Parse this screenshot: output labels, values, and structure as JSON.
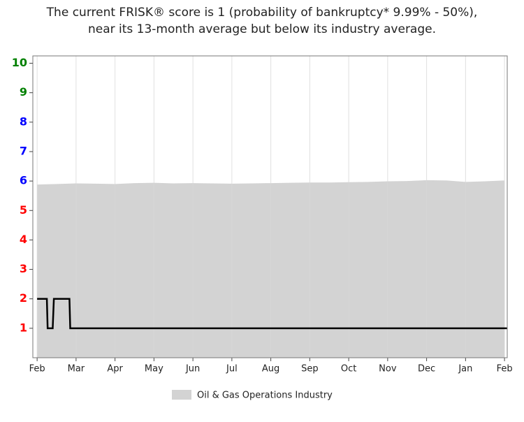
{
  "chart_data": {
    "type": "line",
    "title_lines": [
      "The current FRISK® score is 1 (probability of bankruptcy* 9.99% - 50%),",
      "near its 13-month average but below its industry average."
    ],
    "xlim": [
      -0.11,
      12.07
    ],
    "xticks": [
      {
        "value": 0,
        "label": "Feb"
      },
      {
        "value": 1,
        "label": "Mar"
      },
      {
        "value": 2,
        "label": "Apr"
      },
      {
        "value": 3,
        "label": "May"
      },
      {
        "value": 4,
        "label": "Jun"
      },
      {
        "value": 5,
        "label": "Jul"
      },
      {
        "value": 6,
        "label": "Aug"
      },
      {
        "value": 7,
        "label": "Sep"
      },
      {
        "value": 8,
        "label": "Oct"
      },
      {
        "value": 9,
        "label": "Nov"
      },
      {
        "value": 10,
        "label": "Dec"
      },
      {
        "value": 11,
        "label": "Jan"
      },
      {
        "value": 12,
        "label": "Feb"
      }
    ],
    "ylim": [
      0,
      10.25
    ],
    "yticks": [
      1,
      2,
      3,
      4,
      5,
      6,
      7,
      8,
      9,
      10
    ],
    "ytick_colors": [
      "#ff0000",
      "#ff0000",
      "#ff0000",
      "#ff0000",
      "#ff0000",
      "#0000ff",
      "#0000ff",
      "#0000ff",
      "#008000",
      "#008000"
    ],
    "grid": true,
    "legend": "bottom",
    "series": [
      {
        "name": "Oil & Gas Operations Industry",
        "kind": "area",
        "color": "#d3d3d3",
        "x": [
          0,
          0.5,
          1,
          1.5,
          2,
          2.5,
          3,
          3.5,
          4,
          4.5,
          5,
          5.5,
          6,
          6.5,
          7,
          7.5,
          8,
          8.5,
          9,
          9.5,
          10,
          10.5,
          11,
          11.5,
          12
        ],
        "values": [
          5.88,
          5.9,
          5.92,
          5.91,
          5.9,
          5.93,
          5.94,
          5.92,
          5.93,
          5.92,
          5.91,
          5.92,
          5.93,
          5.94,
          5.95,
          5.95,
          5.96,
          5.97,
          5.99,
          6.0,
          6.03,
          6.02,
          5.97,
          5.99,
          6.02
        ]
      },
      {
        "kind": "line",
        "color": "#000000",
        "x": [
          0,
          0.25,
          0.27,
          0.4,
          0.43,
          0.83,
          0.85,
          12.07
        ],
        "values": [
          2,
          2,
          1,
          1,
          2,
          2,
          1,
          1
        ]
      }
    ]
  }
}
